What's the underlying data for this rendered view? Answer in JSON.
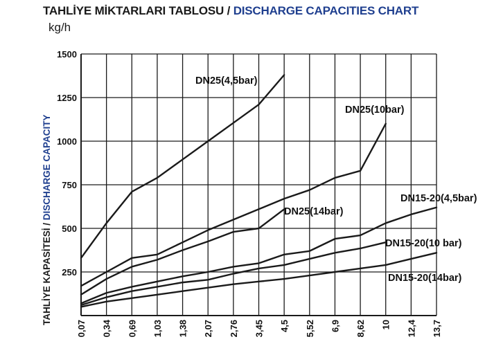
{
  "header": {
    "title_tr": "TAHLİYE MİKTARLARI TABLOSU / ",
    "title_en": "DISCHARGE CAPACITIES CHART",
    "unit": "kg/h"
  },
  "colors": {
    "line": "#1a1a1a",
    "grid": "#1a1a1a",
    "title_accent": "#1f3f8f"
  },
  "chart_data": {
    "type": "line",
    "title": "TAHLİYE MİKTARLARI TABLOSU / DISCHARGE CAPACITIES CHART",
    "ylabel_tr": "TAHLİYE KAPASİTESİ / ",
    "ylabel_en": "DISCHARGE CAPACITY",
    "yunit": "kg/h",
    "x": [
      "0,07",
      "0,34",
      "0,69",
      "1,03",
      "1,38",
      "2,07",
      "2,76",
      "3,45",
      "4,5",
      "5,52",
      "6,9",
      "8,62",
      "10",
      "12,4",
      "13,7"
    ],
    "y_ticks": [
      250,
      500,
      750,
      1000,
      1250,
      1500
    ],
    "ylim": [
      0,
      1500
    ],
    "grid": true,
    "series": [
      {
        "name": "DN25(4,5bar)",
        "values": [
          330,
          530,
          710,
          790,
          895,
          1000,
          1105,
          1210,
          1380,
          null,
          null,
          null,
          null,
          null,
          null
        ]
      },
      {
        "name": "DN25(10bar)",
        "values": [
          170,
          250,
          330,
          350,
          420,
          490,
          550,
          610,
          670,
          720,
          790,
          830,
          1100,
          null,
          null
        ]
      },
      {
        "name": "DN25(14bar)",
        "values": [
          120,
          210,
          280,
          320,
          375,
          425,
          480,
          500,
          610,
          null,
          null,
          null,
          null,
          null,
          null
        ]
      },
      {
        "name": "DN15-20(4,5bar)",
        "values": [
          70,
          130,
          165,
          195,
          225,
          250,
          280,
          300,
          350,
          370,
          440,
          460,
          530,
          580,
          620
        ]
      },
      {
        "name": "DN15-20(10 bar)",
        "values": [
          60,
          105,
          140,
          165,
          190,
          205,
          240,
          270,
          290,
          325,
          360,
          385,
          420,
          null,
          null
        ]
      },
      {
        "name": "DN15-20(14bar)",
        "values": [
          50,
          80,
          100,
          120,
          140,
          160,
          180,
          195,
          210,
          230,
          250,
          270,
          290,
          325,
          360
        ]
      }
    ]
  }
}
